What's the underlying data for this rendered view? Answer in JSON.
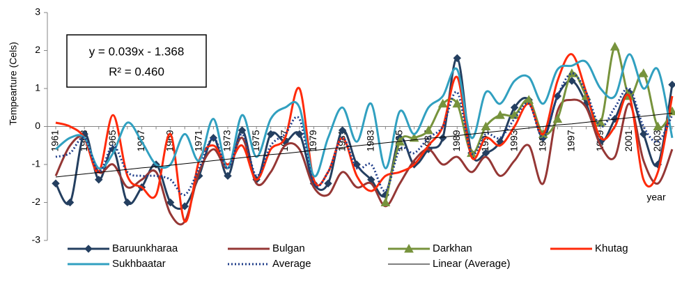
{
  "chart_data": {
    "type": "line",
    "y_label": "Tempearture  (Cels)",
    "x_label": "year",
    "annotations": [
      "y = 0.039x - 1.368",
      "R² = 0.460"
    ],
    "categories": [
      "1961",
      null,
      "1963",
      null,
      "1965",
      null,
      "1967",
      null,
      "1969",
      null,
      "1971",
      null,
      "1973",
      null,
      "1975",
      null,
      "1977",
      null,
      "1979",
      null,
      "1981",
      null,
      "1983",
      null,
      "1985",
      null,
      "1987",
      null,
      "1989",
      null,
      "1991",
      null,
      "1993",
      null,
      "1995",
      null,
      "1997",
      null,
      "1999",
      null,
      "2001",
      null,
      "2003",
      null
    ],
    "ylim": [
      -3,
      3
    ],
    "yticks": [
      -3,
      -2,
      -1,
      0,
      1,
      2,
      3
    ],
    "series": [
      {
        "name": "Baruunkharaa",
        "color": "#243f60",
        "marker": "diamond",
        "values": [
          -1.5,
          -2.0,
          -0.2,
          -1.4,
          -0.6,
          -2.0,
          -1.6,
          -1.0,
          -2.0,
          -2.1,
          -1.3,
          -0.3,
          -1.3,
          -0.1,
          -1.4,
          -0.2,
          -0.4,
          -0.2,
          -1.5,
          -1.5,
          -0.1,
          -1.0,
          -1.4,
          -1.8,
          -0.3,
          -1.0,
          -0.6,
          -0.3,
          1.8,
          -0.7,
          -0.7,
          -0.4,
          0.5,
          0.7,
          -0.3,
          0.8,
          1.2,
          0.6,
          -0.4,
          0.2,
          0.9,
          -0.2,
          -1.0,
          1.1
        ]
      },
      {
        "name": "Bulgan",
        "color": "#953735",
        "values": [
          -1.3,
          -0.5,
          -0.3,
          -1.2,
          -1.0,
          -1.6,
          -1.4,
          -1.2,
          -2.3,
          -2.5,
          -1.2,
          -0.6,
          -1.1,
          -0.3,
          -1.5,
          -1.2,
          -0.5,
          -0.6,
          -1.6,
          -1.8,
          -1.2,
          -1.6,
          -1.5,
          -2.1,
          -1.5,
          -0.9,
          -0.6,
          -1.0,
          -0.8,
          -1.2,
          -0.8,
          -1.3,
          -0.9,
          -0.5,
          -1.5,
          0.4,
          0.7,
          0.5,
          -0.5,
          -0.8,
          0.6,
          -0.9,
          -1.5,
          -0.6
        ]
      },
      {
        "name": "Darkhan",
        "color": "#77933c",
        "marker": "triangle",
        "values": [
          null,
          null,
          null,
          null,
          null,
          null,
          null,
          null,
          null,
          null,
          null,
          null,
          null,
          null,
          null,
          null,
          null,
          null,
          null,
          null,
          null,
          null,
          null,
          -2.0,
          -0.4,
          -0.3,
          -0.1,
          0.6,
          0.6,
          -0.7,
          0.0,
          0.3,
          0.3,
          0.7,
          -0.2,
          0.2,
          1.4,
          0.8,
          0.1,
          2.1,
          0.8,
          1.4,
          0.0,
          0.4
        ]
      },
      {
        "name": "Khutag",
        "color": "#ff2a0a",
        "values": [
          0.1,
          0.0,
          -0.3,
          -1.2,
          0.3,
          -1.3,
          -1.6,
          -1.8,
          -0.2,
          -2.5,
          -0.9,
          -0.5,
          -1.0,
          -0.5,
          -1.4,
          -0.6,
          -0.3,
          1.0,
          -1.4,
          -1.2,
          -0.3,
          -1.3,
          -1.7,
          -1.3,
          -1.2,
          -1.0,
          -0.5,
          0.0,
          1.3,
          -0.8,
          -0.3,
          -0.5,
          0.0,
          0.6,
          -0.2,
          1.2,
          1.9,
          0.9,
          -0.3,
          0.0,
          0.8,
          -1.4,
          -1.2,
          0.8
        ]
      },
      {
        "name": "Sukhbaatar",
        "color": "#31a0c0",
        "values": [
          -0.6,
          -0.3,
          -0.3,
          -1.1,
          -0.7,
          0.1,
          -0.4,
          -1.0,
          -1.0,
          -0.2,
          -0.9,
          0.2,
          -1.1,
          0.3,
          -0.8,
          0.2,
          0.5,
          0.5,
          -1.3,
          -0.3,
          0.5,
          -0.4,
          0.6,
          -1.1,
          0.4,
          -0.2,
          0.5,
          0.8,
          1.5,
          -0.3,
          0.9,
          0.6,
          1.2,
          1.3,
          0.6,
          1.5,
          1.6,
          1.7,
          1.0,
          0.8,
          1.9,
          1.0,
          1.5,
          -0.3
        ]
      },
      {
        "name": "Average",
        "color": "#1f3d8a",
        "dash": "dotted",
        "values": [
          -0.8,
          -0.7,
          -0.3,
          -1.2,
          -0.5,
          -1.2,
          -1.3,
          -1.3,
          -1.4,
          -1.8,
          -1.1,
          -0.3,
          -1.1,
          -0.2,
          -1.3,
          -0.5,
          -0.2,
          0.2,
          -1.5,
          -1.2,
          -0.3,
          -1.1,
          -1.0,
          -1.7,
          -0.6,
          -0.7,
          -0.3,
          0.0,
          0.9,
          -0.7,
          -0.2,
          -0.3,
          0.2,
          0.6,
          -0.3,
          0.8,
          1.4,
          0.9,
          0.0,
          0.5,
          1.0,
          0.0,
          -0.4,
          0.3
        ]
      },
      {
        "name": "Linear (Average)",
        "color": "#000000",
        "straight": true,
        "values": [
          -1.33,
          -1.29,
          -1.25,
          -1.21,
          -1.17,
          -1.13,
          -1.09,
          -1.06,
          -1.02,
          -0.98,
          -0.94,
          -0.9,
          -0.86,
          -0.82,
          -0.78,
          -0.74,
          -0.71,
          -0.67,
          -0.63,
          -0.59,
          -0.55,
          -0.51,
          -0.47,
          -0.43,
          -0.39,
          -0.35,
          -0.31,
          -0.28,
          -0.24,
          -0.2,
          -0.16,
          -0.12,
          -0.08,
          -0.04,
          0.0,
          0.04,
          0.07,
          0.11,
          0.15,
          0.19,
          0.23,
          0.27,
          0.31,
          0.35
        ]
      }
    ]
  }
}
